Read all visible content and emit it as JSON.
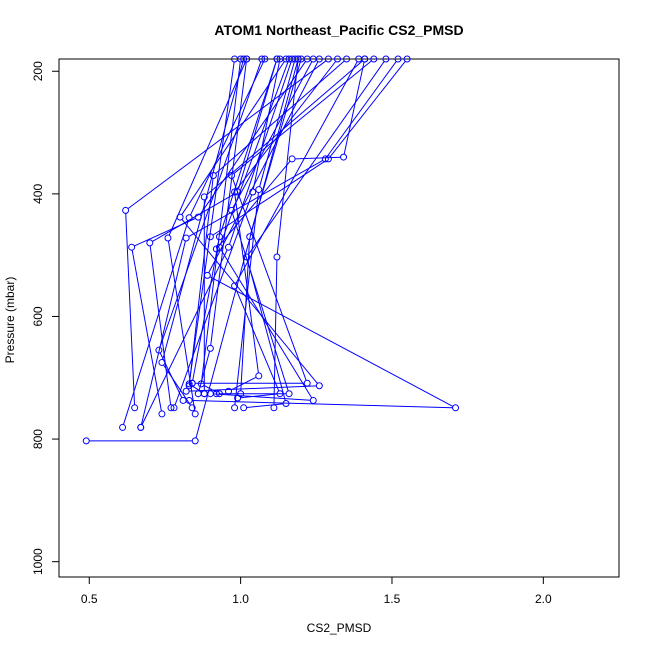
{
  "chart_data": {
    "type": "line",
    "title": "ATOM1 Northeast_Pacific CS2_PMSD",
    "xlabel": "CS2_PMSD",
    "ylabel": "Pressure (mbar)",
    "xlim": [
      0.4,
      2.25
    ],
    "ylim": [
      1025,
      180
    ],
    "y_inverted": true,
    "x_ticks": [
      0.5,
      1.0,
      1.5,
      2.0
    ],
    "x_tick_labels": [
      "0.5",
      "1.0",
      "1.5",
      "2.0"
    ],
    "y_ticks": [
      200,
      400,
      600,
      800,
      1000
    ],
    "y_tick_labels": [
      "200",
      "400",
      "600",
      "800",
      "1000"
    ],
    "grid": false,
    "legend": "none",
    "color": "#0000ff",
    "marker": "open-circle",
    "series": [
      {
        "points": [
          [
            0.49,
            803
          ],
          [
            0.85,
            803
          ],
          [
            1.19,
            180
          ]
        ]
      },
      {
        "points": [
          [
            0.61,
            781
          ],
          [
            0.83,
            439
          ],
          [
            1.08,
            180
          ]
        ]
      },
      {
        "points": [
          [
            0.67,
            781
          ],
          [
            0.96,
            487
          ],
          [
            1.17,
            180
          ]
        ]
      },
      {
        "points": [
          [
            0.65,
            749
          ],
          [
            0.62,
            427
          ],
          [
            1.29,
            180
          ]
        ]
      },
      {
        "points": [
          [
            0.74,
            759
          ],
          [
            0.64,
            487
          ],
          [
            0.86,
            438
          ],
          [
            1.22,
            180
          ]
        ]
      },
      {
        "points": [
          [
            0.77,
            749
          ],
          [
            0.7,
            480
          ],
          [
            0.99,
            397
          ],
          [
            1.12,
            180
          ]
        ]
      },
      {
        "points": [
          [
            0.85,
            759
          ],
          [
            0.76,
            472
          ],
          [
            1.02,
            180
          ]
        ]
      },
      {
        "points": [
          [
            0.81,
            737
          ],
          [
            0.73,
            655
          ],
          [
            1.07,
            180
          ]
        ]
      },
      {
        "points": [
          [
            0.84,
            749
          ],
          [
            0.74,
            675
          ],
          [
            1.01,
            180
          ]
        ]
      },
      {
        "points": [
          [
            0.83,
            713
          ],
          [
            0.91,
            370
          ],
          [
            1.35,
            180
          ]
        ]
      },
      {
        "points": [
          [
            0.88,
            726
          ],
          [
            0.88,
            405
          ],
          [
            1.41,
            180
          ]
        ]
      },
      {
        "points": [
          [
            0.82,
            722
          ],
          [
            1.26,
            713
          ],
          [
            0.8,
            438
          ],
          [
            1.15,
            180
          ]
        ]
      },
      {
        "points": [
          [
            0.84,
            709
          ],
          [
            1.22,
            709
          ],
          [
            0.97,
            370
          ],
          [
            1.44,
            180
          ]
        ]
      },
      {
        "points": [
          [
            0.83,
            737
          ],
          [
            1.71,
            749
          ],
          [
            0.89,
            533
          ],
          [
            1.26,
            180
          ]
        ]
      },
      {
        "points": [
          [
            0.9,
            726
          ],
          [
            1.24,
            737
          ],
          [
            0.93,
            487
          ],
          [
            1.16,
            180
          ]
        ]
      },
      {
        "points": [
          [
            0.92,
            726
          ],
          [
            1.16,
            726
          ],
          [
            0.97,
            427
          ],
          [
            1.24,
            180
          ]
        ]
      },
      {
        "points": [
          [
            0.96,
            722
          ],
          [
            1.06,
            697
          ],
          [
            0.98,
            397
          ],
          [
            1.32,
            180
          ]
        ]
      },
      {
        "points": [
          [
            0.99,
            733
          ],
          [
            1.13,
            726
          ],
          [
            0.98,
            550
          ],
          [
            1.39,
            180
          ]
        ]
      },
      {
        "points": [
          [
            1.01,
            749
          ],
          [
            1.15,
            742
          ],
          [
            1.02,
            503
          ],
          [
            1.48,
            180
          ]
        ]
      },
      {
        "points": [
          [
            1.11,
            749
          ],
          [
            1.12,
            503
          ],
          [
            1.19,
            180
          ]
        ]
      },
      {
        "points": [
          [
            1.0,
            726
          ],
          [
            1.03,
            470
          ],
          [
            1.2,
            180
          ]
        ]
      },
      {
        "points": [
          [
            0.84,
            709
          ],
          [
            0.93,
            470
          ],
          [
            1.12,
            180
          ]
        ]
      },
      {
        "points": [
          [
            0.86,
            726
          ],
          [
            0.9,
            652
          ],
          [
            1.02,
            180
          ]
        ]
      },
      {
        "points": [
          [
            0.88,
            726
          ],
          [
            0.83,
            710
          ],
          [
            0.98,
            180
          ]
        ]
      },
      {
        "points": [
          [
            0.93,
            726
          ],
          [
            0.87,
            710
          ],
          [
            1.0,
            180
          ]
        ]
      },
      {
        "points": [
          [
            0.78,
            749
          ],
          [
            1.04,
            397
          ],
          [
            1.13,
            180
          ]
        ]
      },
      {
        "points": [
          [
            0.98,
            749
          ],
          [
            1.06,
            393
          ],
          [
            1.18,
            180
          ]
        ]
      },
      {
        "points": [
          [
            0.92,
            490
          ],
          [
            1.17,
            343
          ],
          [
            1.34,
            340
          ],
          [
            1.41,
            180
          ]
        ]
      },
      {
        "points": [
          [
            0.9,
            470
          ],
          [
            1.29,
            343
          ],
          [
            1.55,
            180
          ]
        ]
      },
      {
        "points": [
          [
            0.67,
            781
          ],
          [
            0.82,
            472
          ],
          [
            1.28,
            343
          ],
          [
            1.52,
            180
          ]
        ]
      }
    ]
  }
}
